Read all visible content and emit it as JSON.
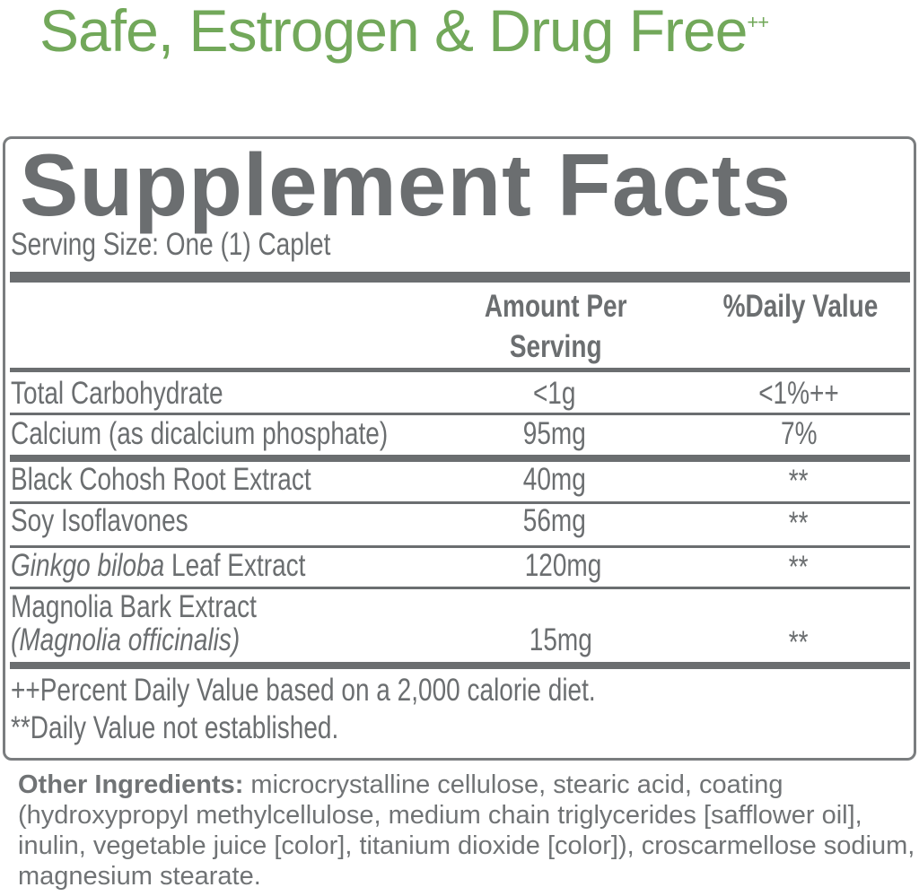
{
  "tagline": {
    "text": "Safe, Estrogen & Drug Free",
    "mark": "++"
  },
  "label": {
    "title": "Supplement Facts",
    "serving_size": "Serving Size: One (1) Caplet",
    "headers": {
      "amount_line1": "Amount Per",
      "amount_line2": "Serving",
      "daily_value": "%Daily Value"
    },
    "rows": [
      {
        "name": "Total Carbohydrate",
        "amount": "<1g",
        "dv": "<1%++"
      },
      {
        "name": "Calcium (as dicalcium phosphate)",
        "amount": "95mg",
        "dv": "7%"
      },
      {
        "name": "Black Cohosh Root Extract",
        "amount": "40mg",
        "dv": "**"
      },
      {
        "name": "Soy Isoflavones",
        "amount": "56mg",
        "dv": "**"
      },
      {
        "name_italic": "Ginkgo biloba",
        "name": " Leaf Extract",
        "amount": "120mg",
        "dv": "**"
      },
      {
        "name": "Magnolia Bark Extract",
        "name_italic": "(Magnolia officinalis)",
        "amount": "15mg",
        "dv": "**"
      }
    ],
    "footnotes": [
      "++Percent Daily Value based on a 2,000 calorie diet.",
      "**Daily Value not established."
    ]
  },
  "other_ingredients": {
    "label": "Other Ingredients:",
    "text": " microcrystalline cellulose, stearic acid, coating (hydroxypropyl methylcellulose, medium chain triglycerides [safflower oil], inulin, vegetable juice [color], titanium dioxide [color]), croscarmellose sodium, magnesium stearate."
  },
  "colors": {
    "green": "#72a85a",
    "gray": "#6b6e70"
  }
}
